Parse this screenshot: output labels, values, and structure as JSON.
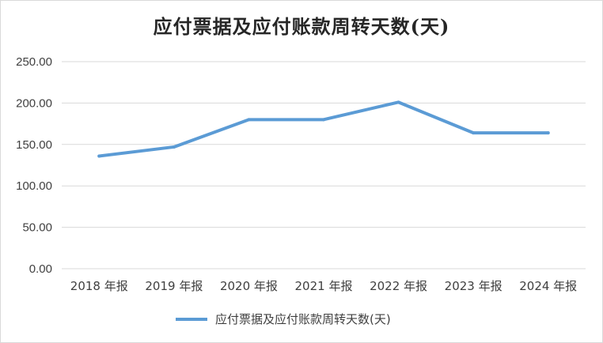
{
  "chart_data": {
    "type": "line",
    "title": "应付票据及应付账款周转天数(天)",
    "categories": [
      "2018 年报",
      "2019 年报",
      "2020 年报",
      "2021 年报",
      "2022 年报",
      "2023 年报",
      "2024 年报"
    ],
    "series": [
      {
        "name": "应付票据及应付账款周转天数(天)",
        "values": [
          136,
          147,
          180,
          180,
          201,
          164,
          164
        ]
      }
    ],
    "ylim": [
      0,
      250
    ],
    "yticks": [
      "0.00",
      "50.00",
      "100.00",
      "150.00",
      "200.00",
      "250.00"
    ],
    "grid": true,
    "legend": "bottom",
    "color": "#5b9bd5"
  }
}
